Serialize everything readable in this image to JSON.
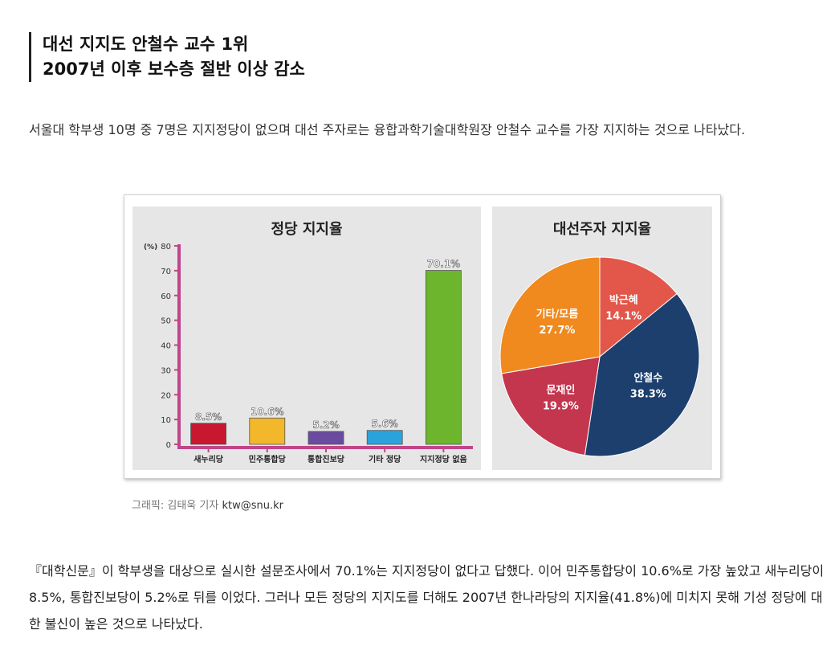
{
  "headline": {
    "line1": "대선 지지도 안철수 교수 1위",
    "line2": "2007년 이후 보수층 절반 이상 감소"
  },
  "lead": "서울대 학부생 10명 중 7명은 지지정당이 없으며 대선 주자로는 융합과학기술대학원장 안철수 교수를 가장 지지하는 것으로 나타났다.",
  "caption": {
    "prefix": "그래픽: 김태욱 기자 ",
    "email": "ktw@snu.kr"
  },
  "body": "『대학신문』이 학부생을 대상으로 실시한 설문조사에서 70.1%는 지지정당이 없다고 답했다. 이어 민주통합당이 10.6%로 가장 높았고 새누리당이 8.5%, 통합진보당이 5.2%로 뒤를 이었다. 그러나 모든 정당의 지지도를 더해도 2007년 한나라당의 지지율(41.8%)에 미치지 못해 기성 정당에 대한 불신이 높은 것으로 나타났다.",
  "chart_data": [
    {
      "type": "bar",
      "title": "정당 지지율",
      "ylabel": "(%)",
      "ylim": [
        0,
        80
      ],
      "yticks": [
        0,
        10,
        20,
        30,
        40,
        50,
        60,
        70,
        80
      ],
      "grid": false,
      "categories": [
        "새누리당",
        "민주통합당",
        "통합진보당",
        "기타 정당",
        "지지정당 없음"
      ],
      "values": [
        8.5,
        10.6,
        5.2,
        5.6,
        70.1
      ],
      "labels": [
        "8.5%",
        "10.6%",
        "5.2%",
        "5.6%",
        "70.1%"
      ],
      "colors": [
        "#c8182f",
        "#f2b72b",
        "#6b4ba0",
        "#2aa3dd",
        "#6cb52d"
      ]
    },
    {
      "type": "pie",
      "title": "대선주자 지지율",
      "slices": [
        {
          "name": "박근혜",
          "value": 14.1,
          "label": "14.1%",
          "color": "#e2574a"
        },
        {
          "name": "안철수",
          "value": 38.3,
          "label": "38.3%",
          "color": "#1c3f6e"
        },
        {
          "name": "문재인",
          "value": 19.9,
          "label": "19.9%",
          "color": "#c3364e"
        },
        {
          "name": "기타/모름",
          "value": 27.7,
          "label": "27.7%",
          "color": "#f0891e"
        }
      ]
    }
  ]
}
